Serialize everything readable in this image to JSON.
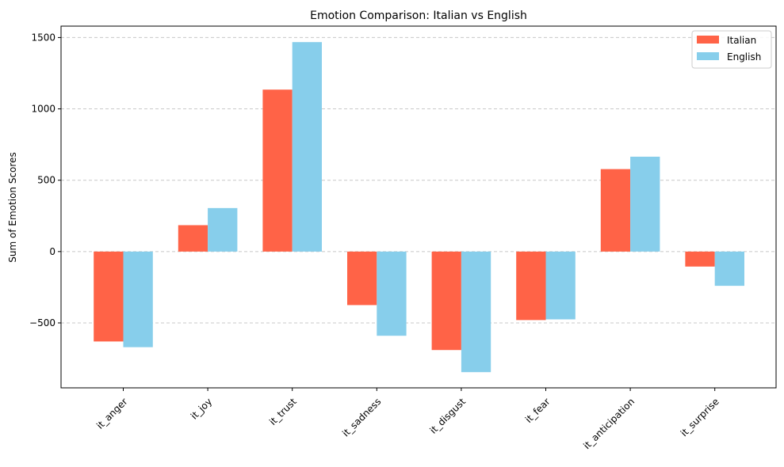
{
  "chart_data": {
    "type": "bar",
    "title": "Emotion Comparison: Italian vs English",
    "xlabel": "",
    "ylabel": "Sum of Emotion Scores",
    "categories": [
      "it_anger",
      "it_joy",
      "it_trust",
      "it_sadness",
      "it_disgust",
      "it_fear",
      "it_anticipation",
      "it_surprise"
    ],
    "series": [
      {
        "name": "Italian",
        "color": "#ff6347",
        "values": [
          -630,
          185,
          1135,
          -375,
          -690,
          -480,
          578,
          -105
        ]
      },
      {
        "name": "English",
        "color": "#87ceeb",
        "values": [
          -670,
          305,
          1468,
          -590,
          -845,
          -475,
          665,
          -240
        ]
      }
    ],
    "ylim": [
      -955,
      1580
    ],
    "yticks": [
      -500,
      0,
      500,
      1000,
      1500
    ],
    "ytick_labels": [
      "−500",
      "0",
      "500",
      "1000",
      "1500"
    ],
    "grid": "y-dashed",
    "legend_position": "top-right"
  }
}
